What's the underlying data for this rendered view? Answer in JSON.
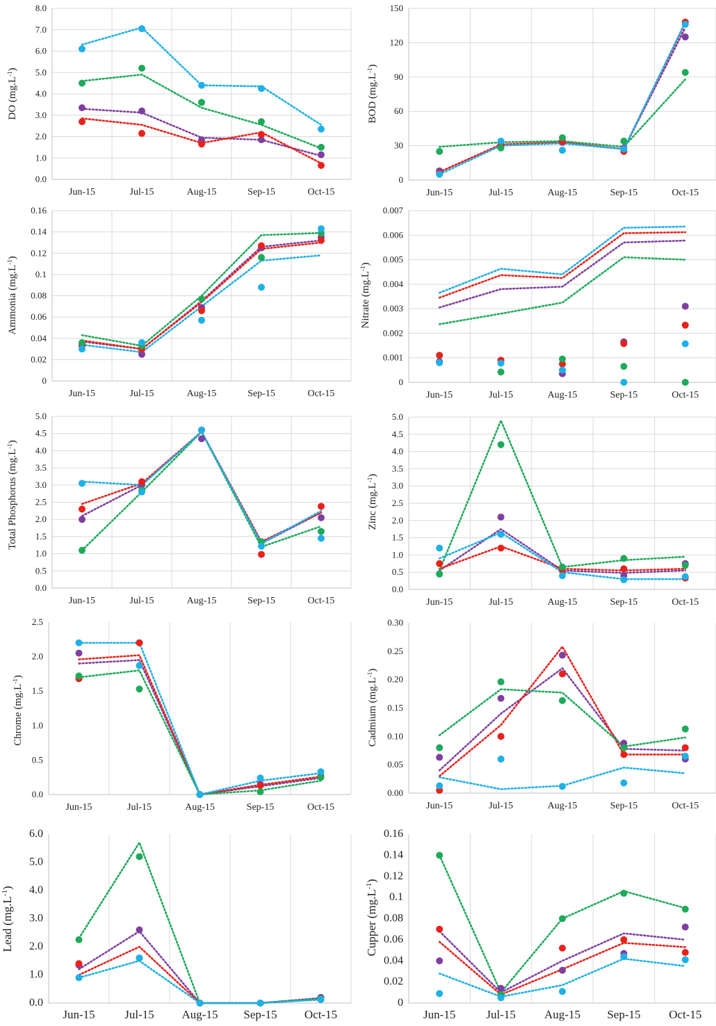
{
  "colors": {
    "purple": "#7f3fa0",
    "red": "#e8221b",
    "green": "#1faa5a",
    "cyan": "#1fb0e6",
    "grid": "#d9d9d9",
    "axis": "#bfbfbf"
  },
  "chart_data": [
    {
      "type": "scatter",
      "ylabel": "DO (mg.L",
      "ylabel_sup": "-1",
      "ylabel_tail": ")",
      "categories": [
        "Jun-15",
        "Jul-15",
        "Aug-15",
        "Sep-15",
        "Oct-15"
      ],
      "ylim": [
        0,
        8
      ],
      "yticks": [
        "0.0",
        "1.0",
        "2.0",
        "3.0",
        "4.0",
        "5.0",
        "6.0",
        "7.0",
        "8.0"
      ],
      "grid": "both",
      "series": [
        {
          "color": "purple",
          "values": [
            3.35,
            3.2,
            1.85,
            1.85,
            1.15
          ],
          "trend": [
            3.3,
            3.12,
            1.95,
            1.85,
            1.1
          ]
        },
        {
          "color": "red",
          "values": [
            2.7,
            2.15,
            1.65,
            2.1,
            0.65
          ],
          "trend": [
            2.85,
            2.55,
            1.7,
            2.2,
            0.75
          ]
        },
        {
          "color": "green",
          "values": [
            4.5,
            5.2,
            3.6,
            2.7,
            1.5
          ],
          "trend": [
            4.6,
            4.9,
            3.35,
            2.55,
            1.45
          ]
        },
        {
          "color": "cyan",
          "values": [
            6.1,
            7.05,
            4.4,
            4.25,
            2.35
          ],
          "trend": [
            6.3,
            7.1,
            4.4,
            4.35,
            2.55
          ]
        }
      ]
    },
    {
      "type": "scatter",
      "ylabel": "BOD (mg.L",
      "ylabel_sup": "-1",
      "ylabel_tail": ")",
      "categories": [
        "Jun-15",
        "Jul-15",
        "Aug-15",
        "Sep-15",
        "Oct-15"
      ],
      "ylim": [
        0,
        150
      ],
      "yticks": [
        "0",
        "30",
        "60",
        "90",
        "120",
        "150"
      ],
      "grid": "both",
      "series": [
        {
          "color": "purple",
          "values": [
            8,
            31,
            33,
            28,
            125
          ],
          "trend": [
            7,
            31,
            33,
            27,
            133
          ]
        },
        {
          "color": "red",
          "values": [
            6,
            30,
            34,
            25,
            138
          ],
          "trend": [
            7,
            31,
            33,
            27,
            137
          ]
        },
        {
          "color": "green",
          "values": [
            25,
            28,
            37,
            34,
            94
          ],
          "trend": [
            29,
            33,
            34,
            29,
            88
          ]
        },
        {
          "color": "cyan",
          "values": [
            5,
            34,
            26,
            27,
            136
          ],
          "trend": [
            5,
            30,
            32,
            27,
            138
          ]
        }
      ]
    },
    {
      "type": "scatter",
      "ylabel": "Ammonia (mg.L",
      "ylabel_sup": "-1",
      "ylabel_tail": ")",
      "categories": [
        "Jun-15",
        "Jul-15",
        "Aug-15",
        "Sep-15",
        "Oct-15"
      ],
      "ylim": [
        0,
        0.16
      ],
      "yticks": [
        "0",
        "0.02",
        "0.04",
        "0.06",
        "0.08",
        "0.1",
        "0.12",
        "0.14",
        "0.16"
      ],
      "grid": "both",
      "series": [
        {
          "color": "purple",
          "values": [
            0.033,
            0.025,
            0.069,
            0.125,
            0.135
          ],
          "trend": [
            0.037,
            0.03,
            0.075,
            0.126,
            0.132
          ]
        },
        {
          "color": "red",
          "values": [
            0.035,
            0.03,
            0.066,
            0.127,
            0.132
          ],
          "trend": [
            0.038,
            0.03,
            0.074,
            0.124,
            0.13
          ]
        },
        {
          "color": "green",
          "values": [
            0.036,
            0.033,
            0.077,
            0.116,
            0.139
          ],
          "trend": [
            0.043,
            0.033,
            0.08,
            0.137,
            0.139
          ]
        },
        {
          "color": "cyan",
          "values": [
            0.03,
            0.036,
            0.057,
            0.088,
            0.143
          ],
          "trend": [
            0.034,
            0.027,
            0.07,
            0.113,
            0.118
          ]
        }
      ]
    },
    {
      "type": "scatter",
      "ylabel": "Nitrate (mg.L",
      "ylabel_sup": "-1",
      "ylabel_tail": ")",
      "categories": [
        "Jun-15",
        "Jul-15",
        "Aug-15",
        "Sep-15",
        "Oct-15"
      ],
      "ylim": [
        0,
        0.007
      ],
      "yticks": [
        "0",
        "0.001",
        "0.002",
        "0.003",
        "0.004",
        "0.005",
        "0.006",
        "0.007"
      ],
      "grid": "both",
      "series": [
        {
          "color": "purple",
          "values": [
            0.00085,
            0.0009,
            0.00035,
            0.00165,
            0.0031
          ],
          "trend": [
            0.00305,
            0.0038,
            0.0039,
            0.0057,
            0.00578
          ]
        },
        {
          "color": "red",
          "values": [
            0.0011,
            0.0009,
            0.00075,
            0.00158,
            0.00233
          ],
          "trend": [
            0.00345,
            0.00437,
            0.00425,
            0.00608,
            0.00612
          ]
        },
        {
          "color": "green",
          "values": [
            0.0008,
            0.00042,
            0.00095,
            0.00065,
            0
          ],
          "trend": [
            0.00237,
            0.0028,
            0.00325,
            0.0051,
            0.005
          ]
        },
        {
          "color": "cyan",
          "values": [
            0.0008,
            0.00078,
            0.0005,
            0,
            0.00157
          ],
          "trend": [
            0.00365,
            0.00463,
            0.0044,
            0.0063,
            0.00635
          ]
        }
      ]
    },
    {
      "type": "scatter",
      "ylabel": "Total Phosphorus (mg.L",
      "ylabel_sup": "-1",
      "ylabel_tail": ")",
      "categories": [
        "Jun-15",
        "Jul-15",
        "Aug-15",
        "Sep-15",
        "Oct-15"
      ],
      "ylim": [
        0,
        5
      ],
      "yticks": [
        "0.0",
        "0.5",
        "1.0",
        "1.5",
        "2.0",
        "2.5",
        "3.0",
        "3.5",
        "4.0",
        "4.5",
        "5.0"
      ],
      "grid": "both",
      "series": [
        {
          "color": "purple",
          "values": [
            2.0,
            3.0,
            4.35,
            1.35,
            2.05
          ],
          "trend": [
            2.1,
            3.0,
            4.55,
            1.3,
            2.2
          ]
        },
        {
          "color": "red",
          "values": [
            2.3,
            3.1,
            4.6,
            0.98,
            2.38
          ],
          "trend": [
            2.45,
            3.05,
            4.55,
            1.35,
            2.2
          ]
        },
        {
          "color": "green",
          "values": [
            1.1,
            2.85,
            4.6,
            1.35,
            1.65
          ],
          "trend": [
            1.1,
            2.8,
            4.55,
            1.2,
            1.8
          ]
        },
        {
          "color": "cyan",
          "values": [
            3.05,
            2.8,
            4.6,
            1.22,
            1.45
          ],
          "trend": [
            3.1,
            3.0,
            4.55,
            1.3,
            2.25
          ]
        }
      ]
    },
    {
      "type": "scatter",
      "ylabel": "Zinc (mg.L",
      "ylabel_sup": "-1",
      "ylabel_tail": ")",
      "categories": [
        "Jun-15",
        "Jul-15",
        "Aug-15",
        "Sep-15",
        "Oct-15"
      ],
      "ylim": [
        0,
        5
      ],
      "yticks": [
        "0.0",
        "0.5",
        "1.0",
        "1.5",
        "2.0",
        "2.5",
        "3.0",
        "3.5",
        "4.0",
        "4.5",
        "5.0"
      ],
      "grid": "both",
      "series": [
        {
          "color": "purple",
          "values": [
            0.45,
            2.1,
            0.55,
            0.4,
            0.75
          ],
          "trend": [
            0.55,
            1.75,
            0.55,
            0.48,
            0.55
          ]
        },
        {
          "color": "red",
          "values": [
            0.75,
            1.2,
            0.55,
            0.6,
            0.33
          ],
          "trend": [
            0.6,
            1.25,
            0.6,
            0.55,
            0.6
          ]
        },
        {
          "color": "green",
          "values": [
            0.45,
            4.2,
            0.65,
            0.9,
            0.7
          ],
          "trend": [
            0.55,
            4.9,
            0.65,
            0.85,
            0.95
          ]
        },
        {
          "color": "cyan",
          "values": [
            1.2,
            1.6,
            0.4,
            0.28,
            0.37
          ],
          "trend": [
            0.9,
            1.65,
            0.5,
            0.3,
            0.3
          ]
        }
      ]
    },
    {
      "type": "scatter",
      "ylabel": "Chrome (mg.L",
      "ylabel_sup": "-1",
      "ylabel_tail": ")",
      "categories": [
        "Jun-15",
        "Jul-15",
        "Aug-15",
        "Sep-15",
        "Oct-15"
      ],
      "ylim": [
        0,
        2.5
      ],
      "yticks": [
        "0.0",
        "0.5",
        "1.0",
        "1.5",
        "2.0",
        "2.5"
      ],
      "grid": "vertical",
      "series": [
        {
          "color": "purple",
          "values": [
            2.05,
            2.2,
            0,
            0.15,
            0.25
          ],
          "trend": [
            1.9,
            1.95,
            0,
            0.12,
            0.24
          ]
        },
        {
          "color": "red",
          "values": [
            1.68,
            2.2,
            0,
            0.13,
            0.27
          ],
          "trend": [
            1.96,
            2.02,
            0,
            0.14,
            0.26
          ]
        },
        {
          "color": "green",
          "values": [
            1.72,
            1.53,
            0,
            0.04,
            0.25
          ],
          "trend": [
            1.7,
            1.8,
            0,
            0.06,
            0.2
          ]
        },
        {
          "color": "cyan",
          "values": [
            2.2,
            1.87,
            0,
            0.24,
            0.33
          ],
          "trend": [
            2.2,
            2.2,
            0,
            0.2,
            0.31
          ]
        }
      ]
    },
    {
      "type": "scatter",
      "ylabel": "Cadmium (mg.L",
      "ylabel_sup": "-1",
      "ylabel_tail": ")",
      "categories": [
        "Jun-15",
        "Jul-15",
        "Aug-15",
        "Sep-15",
        "Oct-15"
      ],
      "ylim": [
        0,
        0.3
      ],
      "yticks": [
        "0.00",
        "0.05",
        "0.10",
        "0.15",
        "0.20",
        "0.25",
        "0.30"
      ],
      "grid": "vertical",
      "series": [
        {
          "color": "purple",
          "values": [
            0.063,
            0.167,
            0.243,
            0.088,
            0.06
          ],
          "trend": [
            0.04,
            0.14,
            0.22,
            0.078,
            0.075
          ]
        },
        {
          "color": "red",
          "values": [
            0.005,
            0.1,
            0.21,
            0.068,
            0.08
          ],
          "trend": [
            0.03,
            0.12,
            0.258,
            0.068,
            0.068
          ]
        },
        {
          "color": "green",
          "values": [
            0.08,
            0.196,
            0.163,
            0.08,
            0.113
          ],
          "trend": [
            0.102,
            0.183,
            0.177,
            0.082,
            0.098
          ]
        },
        {
          "color": "cyan",
          "values": [
            0.013,
            0.06,
            0.012,
            0.018,
            0.065
          ],
          "trend": [
            0.028,
            0.007,
            0.013,
            0.045,
            0.035
          ]
        }
      ]
    },
    {
      "type": "scatter",
      "ylabel": "Lead (mg.L",
      "ylabel_sup": "-1",
      "ylabel_tail": ")",
      "categories": [
        "Jun-15",
        "Jul-15",
        "Aug-15",
        "Sep-15",
        "Oct-15"
      ],
      "ylim": [
        0,
        6
      ],
      "yticks": [
        "0.0",
        "1.0",
        "2.0",
        "3.0",
        "4.0",
        "5.0",
        "6.0"
      ],
      "grid": "vertical",
      "series": [
        {
          "color": "purple",
          "values": [
            1.35,
            2.6,
            0,
            0,
            0.2
          ],
          "trend": [
            1.2,
            2.55,
            0,
            0,
            0.18
          ]
        },
        {
          "color": "red",
          "values": [
            1.4,
            1.6,
            0,
            0,
            0.15
          ],
          "trend": [
            1.0,
            2.0,
            0,
            0,
            0.15
          ]
        },
        {
          "color": "green",
          "values": [
            2.25,
            5.2,
            0,
            0,
            0.15
          ],
          "trend": [
            2.3,
            5.7,
            0,
            0,
            0.15
          ]
        },
        {
          "color": "cyan",
          "values": [
            0.9,
            1.6,
            0,
            0,
            0.12
          ],
          "trend": [
            0.9,
            1.5,
            0,
            0,
            0.12
          ]
        }
      ]
    },
    {
      "type": "scatter",
      "ylabel": "Cupper (mg.L",
      "ylabel_sup": "-1",
      "ylabel_tail": ")",
      "categories": [
        "Jun-15",
        "Jul-15",
        "Aug-15",
        "Sep-15",
        "Oct-15"
      ],
      "ylim": [
        0,
        0.16
      ],
      "yticks": [
        "0",
        "0.02",
        "0.04",
        "0.06",
        "0.08",
        "0.1",
        "0.12",
        "0.14",
        "0.16"
      ],
      "grid": "vertical",
      "series": [
        {
          "color": "purple",
          "values": [
            0.04,
            0.014,
            0.031,
            0.047,
            0.072
          ],
          "trend": [
            0.068,
            0.01,
            0.04,
            0.066,
            0.06
          ]
        },
        {
          "color": "red",
          "values": [
            0.07,
            0.008,
            0.052,
            0.06,
            0.048
          ],
          "trend": [
            0.058,
            0.008,
            0.032,
            0.057,
            0.053
          ]
        },
        {
          "color": "green",
          "values": [
            0.14,
            0.008,
            0.08,
            0.104,
            0.089
          ],
          "trend": [
            0.14,
            0.01,
            0.08,
            0.106,
            0.09
          ]
        },
        {
          "color": "cyan",
          "values": [
            0.009,
            0.005,
            0.011,
            0.044,
            0.041
          ],
          "trend": [
            0.028,
            0.006,
            0.017,
            0.042,
            0.035
          ]
        }
      ]
    }
  ]
}
